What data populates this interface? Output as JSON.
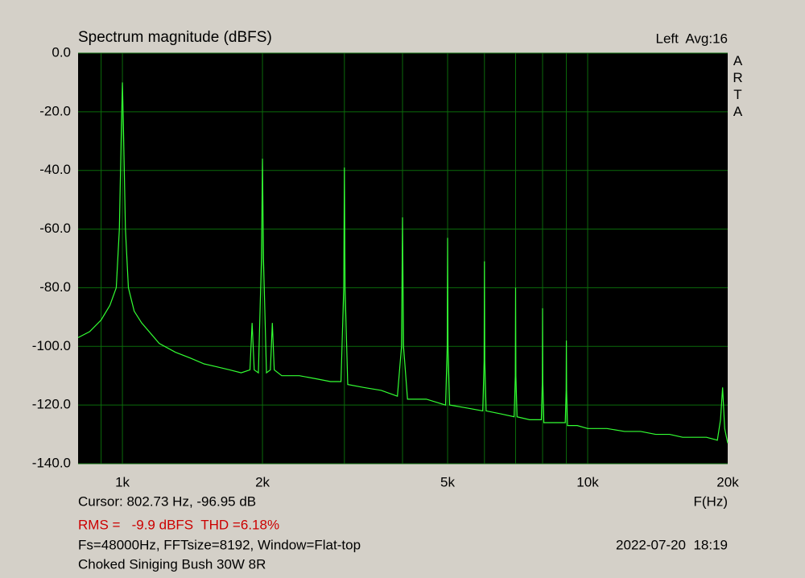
{
  "chart_data": {
    "type": "line",
    "title": "Spectrum magnitude (dBFS)",
    "header_right": "Left  Avg:16",
    "side_label": "ARTA",
    "x_label": "F(Hz)",
    "xscale": "log",
    "xlim": [
      803,
      20000
    ],
    "ylim": [
      -140,
      0
    ],
    "xticks": [
      {
        "value": 1000,
        "label": "1k"
      },
      {
        "value": 2000,
        "label": "2k"
      },
      {
        "value": 5000,
        "label": "5k"
      },
      {
        "value": 10000,
        "label": "10k"
      },
      {
        "value": 20000,
        "label": "20k"
      }
    ],
    "xgrid": [
      900,
      1000,
      2000,
      3000,
      4000,
      5000,
      6000,
      7000,
      8000,
      9000,
      10000
    ],
    "yticks": [
      {
        "value": 0,
        "label": "0.0"
      },
      {
        "value": -20,
        "label": "-20.0"
      },
      {
        "value": -40,
        "label": "-40.0"
      },
      {
        "value": -60,
        "label": "-60.0"
      },
      {
        "value": -80,
        "label": "-80.0"
      },
      {
        "value": -100,
        "label": "-100.0"
      },
      {
        "value": -120,
        "label": "-120.0"
      },
      {
        "value": -140,
        "label": "-140.0"
      }
    ],
    "grid": true,
    "x": [
      803,
      850,
      900,
      940,
      970,
      985,
      995,
      1000,
      1005,
      1015,
      1030,
      1060,
      1100,
      1200,
      1300,
      1400,
      1500,
      1600,
      1700,
      1800,
      1880,
      1900,
      1920,
      1960,
      1990,
      2000,
      2010,
      2040,
      2080,
      2100,
      2120,
      2200,
      2400,
      2600,
      2800,
      2950,
      2990,
      3000,
      3010,
      3050,
      3300,
      3600,
      3900,
      3980,
      4000,
      4020,
      4100,
      4500,
      4950,
      4990,
      5000,
      5010,
      5050,
      5500,
      5950,
      5990,
      6000,
      6010,
      6050,
      6500,
      6950,
      6990,
      7000,
      7010,
      7050,
      7500,
      7950,
      7990,
      8000,
      8010,
      8050,
      8500,
      8950,
      8990,
      9000,
      9010,
      9050,
      9500,
      10000,
      11000,
      12000,
      13000,
      14000,
      15000,
      16000,
      17000,
      18000,
      19000,
      19300,
      19500,
      19700,
      20000
    ],
    "series": [
      {
        "color": "#33ff33",
        "values": [
          -97,
          -95,
          -91,
          -86,
          -80,
          -60,
          -25,
          -10,
          -25,
          -60,
          -80,
          -88,
          -92,
          -99,
          -102,
          -104,
          -106,
          -107,
          -108,
          -109,
          -108,
          -92,
          -108,
          -109,
          -70,
          -36,
          -70,
          -109,
          -108,
          -92,
          -108,
          -110,
          -110,
          -111,
          -112,
          -112,
          -80,
          -39,
          -80,
          -113,
          -114,
          -115,
          -117,
          -100,
          -56,
          -100,
          -118,
          -118,
          -120,
          -100,
          -63,
          -100,
          -120,
          -121,
          -122,
          -105,
          -71,
          -105,
          -122,
          -123,
          -124,
          -110,
          -80,
          -110,
          -124,
          -125,
          -125,
          -112,
          -87,
          -112,
          -126,
          -126,
          -126,
          -115,
          -98,
          -115,
          -127,
          -127,
          -128,
          -128,
          -129,
          -129,
          -130,
          -130,
          -131,
          -131,
          -131,
          -132,
          -125,
          -114,
          -128,
          -133
        ]
      }
    ]
  },
  "footer": {
    "cursor": "Cursor: 802.73 Hz, -96.95 dB",
    "measurements": "RMS =   -9.9 dBFS  THD =6.18%",
    "settings": "Fs=48000Hz, FFTsize=8192, Window=Flat-top",
    "timestamp": "2022-07-20  18:19",
    "device": "Choked Siniging Bush 30W 8R"
  }
}
